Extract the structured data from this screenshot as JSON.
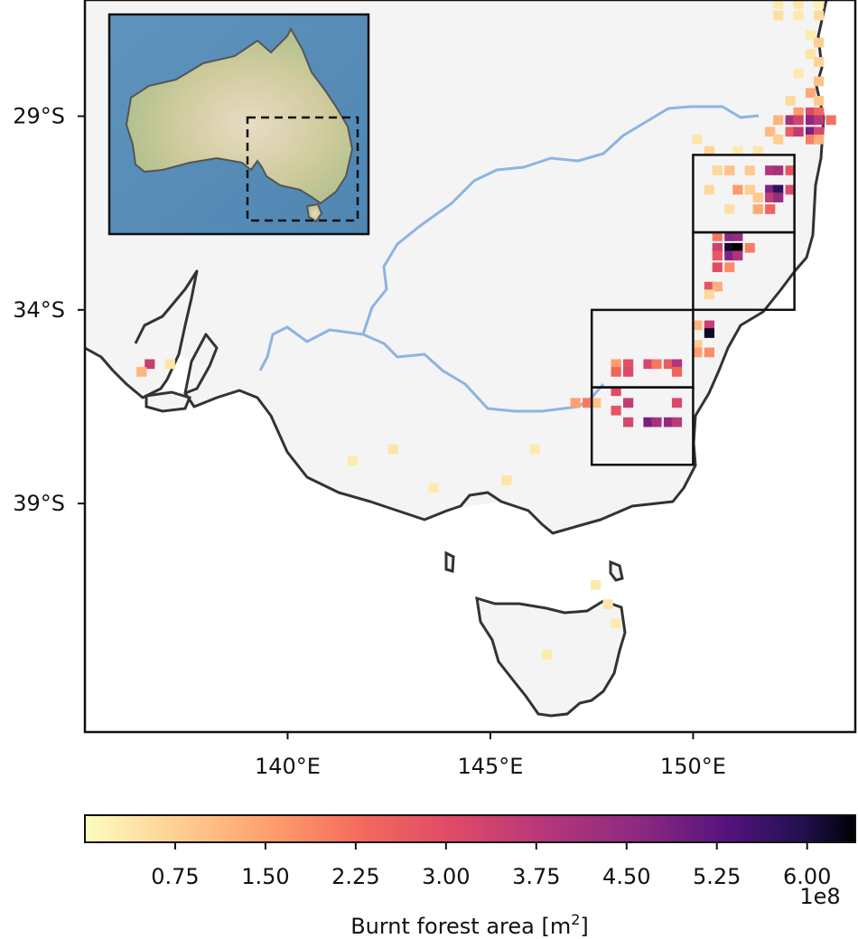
{
  "map": {
    "lat_ticks": [
      "29°S",
      "34°S",
      "39°S"
    ],
    "lon_ticks": [
      "140°E",
      "145°E",
      "150°E"
    ],
    "lat_tick_values": [
      -29,
      -34,
      -39
    ],
    "lon_tick_values": [
      140,
      145,
      150
    ],
    "extent": {
      "lon_min": 135,
      "lon_max": 154,
      "lat_min": -44.9,
      "lat_max": -26.0
    },
    "inset_region": {
      "label": "Australia inset",
      "highlight": "dashed study region box"
    },
    "study_boxes": [
      {
        "lon_min": 150.0,
        "lon_max": 152.5,
        "lat_min": -32.0,
        "lat_max": -30.0
      },
      {
        "lon_min": 150.0,
        "lon_max": 152.5,
        "lat_min": -34.0,
        "lat_max": -32.0
      },
      {
        "lon_min": 147.5,
        "lon_max": 150.0,
        "lat_min": -36.0,
        "lat_max": -34.0
      },
      {
        "lon_min": 147.5,
        "lon_max": 150.0,
        "lat_min": -38.0,
        "lat_max": -36.0
      }
    ],
    "colors": {
      "land": "#f4f4f4",
      "coast": "#333333",
      "river": "#8db4e2",
      "ocean_inset": "#5b8fb5",
      "land_inset": "#cbc89a"
    }
  },
  "colorbar": {
    "label": "Burnt forest area [m",
    "label_sup": "2",
    "label_end": "]",
    "exponent": "1e8",
    "ticks": [
      "0.75",
      "1.50",
      "2.25",
      "3.00",
      "3.75",
      "4.50",
      "5.25",
      "6.00"
    ],
    "tick_values": [
      0.75,
      1.5,
      2.25,
      3.0,
      3.75,
      4.5,
      5.25,
      6.0
    ],
    "vmin": 0.0,
    "vmax": 6.4,
    "colormap": "magma_r"
  },
  "chart_data": {
    "type": "heatmap",
    "title": "",
    "value_label": "Burnt forest area [m2]",
    "value_unit_exponent": "1e8",
    "grid_resolution_deg": 0.25,
    "cells_description": "cell values in units of 1e8 m2 at [lon, lat] centers",
    "cells": [
      [
        152.1,
        -26.1,
        0.3
      ],
      [
        152.6,
        -26.1,
        0.4
      ],
      [
        153.1,
        -26.1,
        0.2
      ],
      [
        152.1,
        -26.4,
        0.5
      ],
      [
        152.6,
        -26.4,
        0.3
      ],
      [
        153.1,
        -26.4,
        0.6
      ],
      [
        152.9,
        -26.9,
        0.3
      ],
      [
        153.1,
        -27.1,
        0.8
      ],
      [
        152.9,
        -27.4,
        0.4
      ],
      [
        153.1,
        -27.6,
        0.7
      ],
      [
        152.6,
        -27.9,
        0.3
      ],
      [
        153.1,
        -28.1,
        1.0
      ],
      [
        152.9,
        -28.4,
        1.4
      ],
      [
        153.1,
        -28.6,
        0.9
      ],
      [
        152.4,
        -28.6,
        0.6
      ],
      [
        152.6,
        -28.9,
        1.6
      ],
      [
        152.9,
        -28.9,
        3.1
      ],
      [
        153.1,
        -28.9,
        2.4
      ],
      [
        152.1,
        -29.1,
        1.2
      ],
      [
        152.4,
        -29.1,
        4.1
      ],
      [
        152.6,
        -29.1,
        3.3
      ],
      [
        152.9,
        -29.1,
        4.6
      ],
      [
        153.1,
        -29.1,
        3.8
      ],
      [
        153.4,
        -29.1,
        2.2
      ],
      [
        152.4,
        -29.4,
        2.6
      ],
      [
        152.6,
        -29.4,
        3.6
      ],
      [
        152.9,
        -29.4,
        4.9
      ],
      [
        153.1,
        -29.4,
        3.2
      ],
      [
        151.9,
        -29.4,
        1.1
      ],
      [
        152.1,
        -29.6,
        0.8
      ],
      [
        152.9,
        -29.6,
        2.0
      ],
      [
        153.1,
        -29.6,
        1.3
      ],
      [
        150.1,
        -29.6,
        0.4
      ],
      [
        150.4,
        -29.9,
        0.7
      ],
      [
        151.1,
        -29.9,
        0.3
      ],
      [
        151.6,
        -29.9,
        0.4
      ],
      [
        150.6,
        -30.4,
        0.6
      ],
      [
        150.9,
        -30.4,
        1.0
      ],
      [
        151.4,
        -30.4,
        0.9
      ],
      [
        151.9,
        -30.4,
        3.9
      ],
      [
        152.1,
        -30.4,
        4.1
      ],
      [
        152.4,
        -30.4,
        2.8
      ],
      [
        151.1,
        -30.9,
        1.6
      ],
      [
        151.4,
        -30.9,
        0.8
      ],
      [
        151.9,
        -30.9,
        4.8
      ],
      [
        152.1,
        -30.9,
        5.8
      ],
      [
        152.4,
        -30.9,
        3.0
      ],
      [
        150.4,
        -30.9,
        0.6
      ],
      [
        151.6,
        -31.1,
        0.9
      ],
      [
        151.9,
        -31.1,
        3.6
      ],
      [
        152.1,
        -31.1,
        4.4
      ],
      [
        150.9,
        -31.4,
        0.5
      ],
      [
        151.6,
        -31.4,
        1.4
      ],
      [
        151.9,
        -31.4,
        2.4
      ],
      [
        150.6,
        -32.1,
        2.1
      ],
      [
        150.9,
        -32.1,
        4.6
      ],
      [
        151.1,
        -32.1,
        4.4
      ],
      [
        150.6,
        -32.4,
        3.4
      ],
      [
        150.9,
        -32.4,
        6.2
      ],
      [
        151.1,
        -32.4,
        6.4
      ],
      [
        151.4,
        -32.4,
        2.0
      ],
      [
        150.6,
        -32.6,
        2.7
      ],
      [
        150.9,
        -32.6,
        4.8
      ],
      [
        151.1,
        -32.6,
        3.9
      ],
      [
        150.6,
        -32.9,
        3.0
      ],
      [
        150.9,
        -32.9,
        1.8
      ],
      [
        150.4,
        -33.4,
        2.8
      ],
      [
        150.6,
        -33.4,
        1.3
      ],
      [
        150.4,
        -33.6,
        0.6
      ],
      [
        150.1,
        -34.4,
        1.2
      ],
      [
        150.4,
        -34.4,
        3.5
      ],
      [
        150.4,
        -34.6,
        6.2
      ],
      [
        150.1,
        -34.9,
        0.8
      ],
      [
        150.1,
        -35.1,
        1.5
      ],
      [
        150.4,
        -35.1,
        1.8
      ],
      [
        148.1,
        -35.4,
        1.6
      ],
      [
        148.4,
        -35.4,
        2.9
      ],
      [
        148.9,
        -35.4,
        3.2
      ],
      [
        149.1,
        -35.4,
        2.1
      ],
      [
        149.4,
        -35.4,
        2.6
      ],
      [
        149.6,
        -35.4,
        3.9
      ],
      [
        148.1,
        -35.6,
        2.4
      ],
      [
        148.4,
        -35.6,
        3.1
      ],
      [
        149.6,
        -35.6,
        2.4
      ],
      [
        147.1,
        -36.4,
        1.5
      ],
      [
        147.4,
        -36.4,
        2.1
      ],
      [
        147.6,
        -36.4,
        1.0
      ],
      [
        148.1,
        -36.1,
        3.0
      ],
      [
        148.4,
        -36.4,
        3.6
      ],
      [
        149.6,
        -36.4,
        3.1
      ],
      [
        148.1,
        -36.6,
        2.8
      ],
      [
        148.4,
        -36.9,
        3.2
      ],
      [
        148.9,
        -36.9,
        4.9
      ],
      [
        149.1,
        -36.9,
        4.1
      ],
      [
        149.4,
        -36.9,
        4.5
      ],
      [
        149.6,
        -36.9,
        3.7
      ],
      [
        136.6,
        -35.4,
        3.5
      ],
      [
        136.4,
        -35.6,
        1.2
      ],
      [
        137.1,
        -35.4,
        0.4
      ],
      [
        146.1,
        -37.6,
        0.3
      ],
      [
        143.6,
        -38.6,
        0.3
      ],
      [
        145.4,
        -38.4,
        0.4
      ],
      [
        147.6,
        -41.1,
        0.3
      ],
      [
        147.9,
        -41.6,
        0.4
      ],
      [
        148.1,
        -42.1,
        0.3
      ],
      [
        146.4,
        -42.9,
        0.3
      ],
      [
        142.6,
        -37.6,
        0.4
      ],
      [
        141.6,
        -37.9,
        0.3
      ]
    ]
  }
}
